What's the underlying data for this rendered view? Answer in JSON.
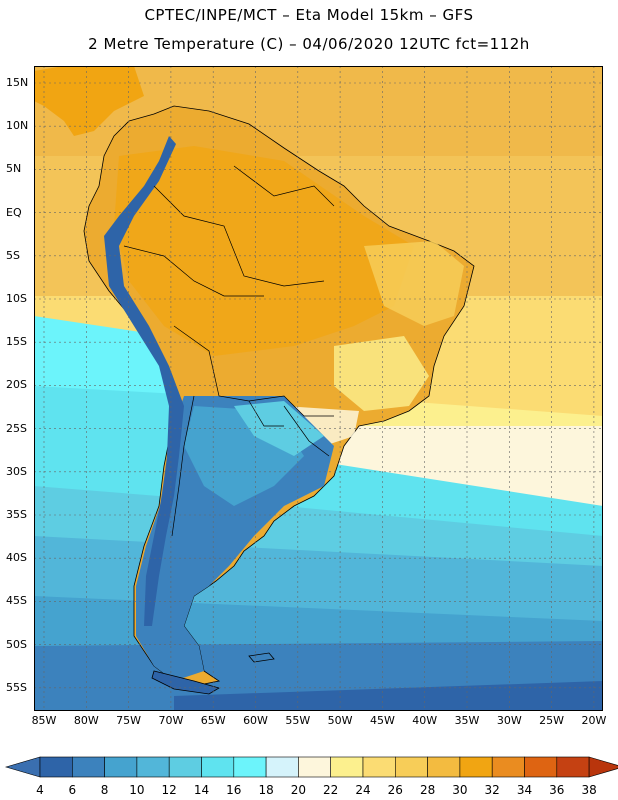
{
  "header": {
    "title_line1": "CPTEC/INPE/MCT –  Eta Model 15km – GFS",
    "title_line2": "2 Metre Temperature (C) – 04/06/2020 12UTC fct=112h"
  },
  "map": {
    "region": "South America",
    "variable": "2 Metre Temperature",
    "lat_labels": [
      "15N",
      "10N",
      "5N",
      "EQ",
      "5S",
      "10S",
      "15S",
      "20S",
      "25S",
      "30S",
      "35S",
      "40S",
      "45S",
      "50S",
      "55S"
    ],
    "lon_labels": [
      "85W",
      "80W",
      "75W",
      "70W",
      "65W",
      "60W",
      "55W",
      "50W",
      "45W",
      "40W",
      "35W",
      "30W",
      "25W",
      "20W"
    ]
  },
  "colorbar": {
    "ticks": [
      "4",
      "6",
      "8",
      "10",
      "12",
      "14",
      "16",
      "18",
      "20",
      "22",
      "24",
      "26",
      "28",
      "30",
      "32",
      "34",
      "36",
      "38"
    ],
    "colors": [
      "#3a6fb0",
      "#2e64a8",
      "#3c82bd",
      "#45a3cf",
      "#52b6d9",
      "#5ecde2",
      "#5fe3ef",
      "#6cf4fb",
      "#d5f3fb",
      "#fdf6dc",
      "#fcf08e",
      "#fbdc73",
      "#f7cd58",
      "#f3bb40",
      "#f1a512",
      "#ea8c20",
      "#de6412",
      "#c54112",
      "#b9350c"
    ]
  }
}
